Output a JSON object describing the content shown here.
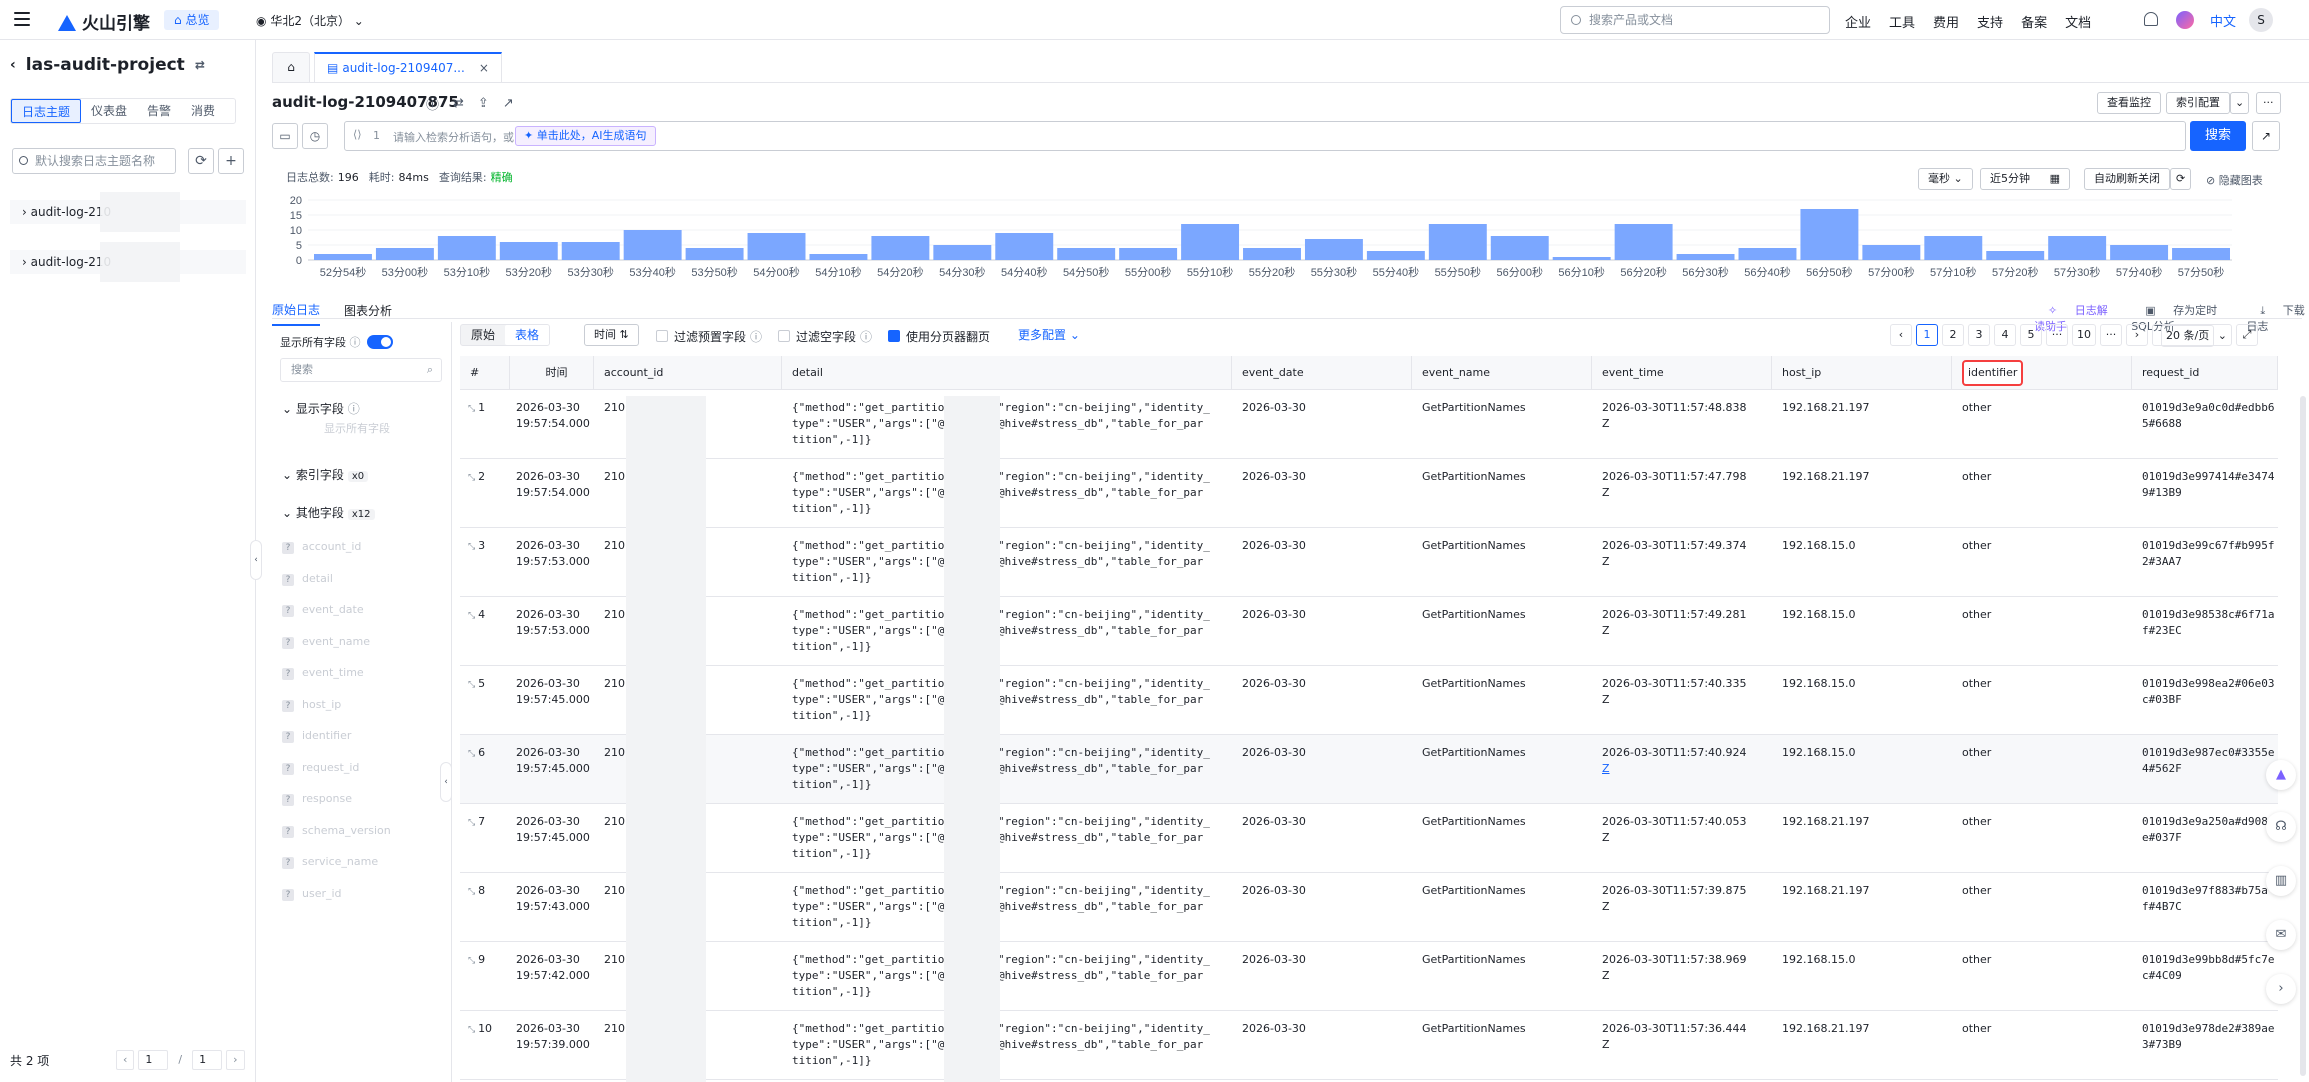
{
  "topbar": {
    "brand": "火山引擎",
    "overview": "总览",
    "region": "华北2（北京）",
    "search_placeholder": "搜索产品或文档",
    "menu": [
      "企业",
      "工具",
      "费用",
      "支持",
      "备案",
      "文档"
    ],
    "lang": "中文",
    "avatar": "S"
  },
  "sidebar": {
    "project": "las-audit-project",
    "tabs": [
      "日志主题",
      "仪表盘",
      "告警",
      "消费"
    ],
    "search_placeholder": "默认搜索日志主题名称",
    "items": [
      "audit-log-210",
      "audit-log-210"
    ],
    "total": "共 2 项",
    "page": "1",
    "page_sep": "/",
    "page_total": "1"
  },
  "tabs": {
    "active": "audit-log-2109407..."
  },
  "main": {
    "title": "audit-log-2109407875",
    "btn_monitor": "查看监控",
    "btn_index": "索引配置",
    "query_line": "1",
    "query_placeholder": "请输入检索分析语句，或",
    "ai_button": "单击此处，AI生成语句",
    "search_button": "搜索",
    "stats": {
      "total_label": "日志总数:",
      "total": "196",
      "time_label": "耗时:",
      "time": "84ms",
      "result_label": "查询结果:",
      "result": "精确"
    },
    "unit": "毫秒",
    "range": "近5分钟",
    "refresh": "自动刷新关闭",
    "hide_chart": "隐藏图表"
  },
  "chart_data": {
    "type": "bar",
    "y_ticks": [
      0,
      5,
      10,
      15,
      20
    ],
    "ylim": [
      0,
      20
    ],
    "x_labels": [
      "52分54秒",
      "53分00秒",
      "53分10秒",
      "53分20秒",
      "53分30秒",
      "53分40秒",
      "53分50秒",
      "54分00秒",
      "54分10秒",
      "54分20秒",
      "54分30秒",
      "54分40秒",
      "54分50秒",
      "55分00秒",
      "55分10秒",
      "55分20秒",
      "55分30秒",
      "55分40秒",
      "55分50秒",
      "56分00秒",
      "56分10秒",
      "56分20秒",
      "56分30秒",
      "56分40秒",
      "56分50秒",
      "57分00秒",
      "57分10秒",
      "57分20秒",
      "57分30秒",
      "57分40秒",
      "57分50秒"
    ],
    "values": [
      2,
      4,
      8,
      6,
      6,
      10,
      4,
      9,
      2,
      8,
      5,
      9,
      4,
      4,
      12,
      4,
      7,
      3,
      12,
      8,
      1,
      12,
      2,
      4,
      17,
      5,
      8,
      3,
      8,
      5,
      4
    ],
    "color": "#7ba7ff"
  },
  "views": {
    "raw": "原始日志",
    "chart": "图表分析"
  },
  "links": {
    "assistant": "日志解读助手",
    "sql": "存为定时SQL分析",
    "download": "下载日志"
  },
  "fields": {
    "show_all": "显示所有字段",
    "search": "搜索",
    "display_fields": "显示字段",
    "display_hint": "显示所有字段",
    "index_fields": "索引字段",
    "index_count": "x0",
    "other_fields": "其他字段",
    "other_count": "x12",
    "list": [
      "account_id",
      "detail",
      "event_date",
      "event_name",
      "event_time",
      "host_ip",
      "identifier",
      "request_id",
      "response",
      "schema_version",
      "service_name",
      "user_id"
    ]
  },
  "toolbar": {
    "seg_raw": "原始",
    "seg_table": "表格",
    "sort": "时间",
    "filter_preset": "过滤预置字段",
    "filter_empty": "过滤空字段",
    "paging": "使用分页器翻页",
    "more": "更多配置",
    "pages": [
      "1",
      "2",
      "3",
      "4",
      "5",
      "···",
      "10",
      "···"
    ],
    "page_size": "20 条/页"
  },
  "table": {
    "columns": [
      "#",
      "时间",
      "account_id",
      "detail",
      "event_date",
      "event_name",
      "event_time",
      "host_ip",
      "identifier",
      "request_id"
    ],
    "rows": [
      {
        "n": "1",
        "d": "2026-03-30",
        "t": "19:57:54.000",
        "acc": "210",
        "det1": "{\"method\":\"get_partition_",
        "det1b": "\"region\":\"cn-beijing\",\"identity_",
        "det2": "type\":\"USER\",\"args\":[\"@2",
        "det2b": "@hive#stress_db\",\"table_for_par",
        "det3": "tition\",-1]}",
        "ed": "2026-03-30",
        "en": "GetPartitionNames",
        "et1": "2026-03-30T11:57:48.838",
        "et2": "Z",
        "ip": "192.168.21.197",
        "id": "other",
        "r1": "01019d3e9a0c0d#edbb6",
        "r2": "5#6688"
      },
      {
        "n": "2",
        "d": "2026-03-30",
        "t": "19:57:54.000",
        "acc": "210",
        "det1": "{\"method\":\"get_partition_",
        "det1b": "\"region\":\"cn-beijing\",\"identity_",
        "det2": "type\":\"USER\",\"args\":[\"@2",
        "det2b": "@hive#stress_db\",\"table_for_par",
        "det3": "tition\",-1]}",
        "ed": "2026-03-30",
        "en": "GetPartitionNames",
        "et1": "2026-03-30T11:57:47.798",
        "et2": "Z",
        "ip": "192.168.21.197",
        "id": "other",
        "r1": "01019d3e997414#e3474",
        "r2": "9#13B9"
      },
      {
        "n": "3",
        "d": "2026-03-30",
        "t": "19:57:53.000",
        "acc": "210",
        "det1": "{\"method\":\"get_partition_",
        "det1b": "\"region\":\"cn-beijing\",\"identity_",
        "det2": "type\":\"USER\",\"args\":[\"@2",
        "det2b": "@hive#stress_db\",\"table_for_par",
        "det3": "tition\",-1]}",
        "ed": "2026-03-30",
        "en": "GetPartitionNames",
        "et1": "2026-03-30T11:57:49.374",
        "et2": "Z",
        "ip": "192.168.15.0",
        "id": "other",
        "r1": "01019d3e99c67f#b995f",
        "r2": "2#3AA7"
      },
      {
        "n": "4",
        "d": "2026-03-30",
        "t": "19:57:53.000",
        "acc": "210",
        "det1": "{\"method\":\"get_partition_",
        "det1b": "\"region\":\"cn-beijing\",\"identity_",
        "det2": "type\":\"USER\",\"args\":[\"@2",
        "det2b": "@hive#stress_db\",\"table_for_par",
        "det3": "tition\",-1]}",
        "ed": "2026-03-30",
        "en": "GetPartitionNames",
        "et1": "2026-03-30T11:57:49.281",
        "et2": "Z",
        "ip": "192.168.15.0",
        "id": "other",
        "r1": "01019d3e98538c#6f71a",
        "r2": "f#23EC"
      },
      {
        "n": "5",
        "d": "2026-03-30",
        "t": "19:57:45.000",
        "acc": "210",
        "det1": "{\"method\":\"get_partition_",
        "det1b": "\"region\":\"cn-beijing\",\"identity_",
        "det2": "type\":\"USER\",\"args\":[\"@2",
        "det2b": "@hive#stress_db\",\"table_for_par",
        "det3": "tition\",-1]}",
        "ed": "2026-03-30",
        "en": "GetPartitionNames",
        "et1": "2026-03-30T11:57:40.335",
        "et2": "Z",
        "ip": "192.168.15.0",
        "id": "other",
        "r1": "01019d3e998ea2#06e03",
        "r2": "c#03BF"
      },
      {
        "n": "6",
        "d": "2026-03-30",
        "t": "19:57:45.000",
        "acc": "210",
        "det1": "{\"method\":\"get_partition_",
        "det1b": "\"region\":\"cn-beijing\",\"identity_",
        "det2": "type\":\"USER\",\"args\":[\"@2",
        "det2b": "@hive#stress_db\",\"table_for_par",
        "det3": "tition\",-1]}",
        "ed": "2026-03-30",
        "en": "GetPartitionNames",
        "et1": "2026-03-30T11:57:40.924",
        "et2": "Z",
        "ip": "192.168.15.0",
        "id": "other",
        "r1": "01019d3e987ec0#3355e",
        "r2": "4#562F"
      },
      {
        "n": "7",
        "d": "2026-03-30",
        "t": "19:57:45.000",
        "acc": "210",
        "det1": "{\"method\":\"get_partition_",
        "det1b": "\"region\":\"cn-beijing\",\"identity_",
        "det2": "type\":\"USER\",\"args\":[\"@2",
        "det2b": "@hive#stress_db\",\"table_for_par",
        "det3": "tition\",-1]}",
        "ed": "2026-03-30",
        "en": "GetPartitionNames",
        "et1": "2026-03-30T11:57:40.053",
        "et2": "Z",
        "ip": "192.168.21.197",
        "id": "other",
        "r1": "01019d3e9a250a#d908",
        "r2": "e#037F"
      },
      {
        "n": "8",
        "d": "2026-03-30",
        "t": "19:57:43.000",
        "acc": "210",
        "det1": "{\"method\":\"get_partition_",
        "det1b": "\"region\":\"cn-beijing\",\"identity_",
        "det2": "type\":\"USER\",\"args\":[\"@2",
        "det2b": "@hive#stress_db\",\"table_for_par",
        "det3": "tition\",-1]}",
        "ed": "2026-03-30",
        "en": "GetPartitionNames",
        "et1": "2026-03-30T11:57:39.875",
        "et2": "Z",
        "ip": "192.168.21.197",
        "id": "other",
        "r1": "01019d3e97f883#b75a",
        "r2": "f#4B7C"
      },
      {
        "n": "9",
        "d": "2026-03-30",
        "t": "19:57:42.000",
        "acc": "210",
        "det1": "{\"method\":\"get_partition_",
        "det1b": "\"region\":\"cn-beijing\",\"identity_",
        "det2": "type\":\"USER\",\"args\":[\"@2",
        "det2b": "@hive#stress_db\",\"table_for_par",
        "det3": "tition\",-1]}",
        "ed": "2026-03-30",
        "en": "GetPartitionNames",
        "et1": "2026-03-30T11:57:38.969",
        "et2": "Z",
        "ip": "192.168.15.0",
        "id": "other",
        "r1": "01019d3e99bb8d#5fc7e",
        "r2": "c#4C09"
      },
      {
        "n": "10",
        "d": "2026-03-30",
        "t": "19:57:39.000",
        "acc": "210",
        "det1": "{\"method\":\"get_partition_",
        "det1b": "\"region\":\"cn-beijing\",\"identity_",
        "det2": "type\":\"USER\",\"args\":[\"@2",
        "det2b": "@hive#stress_db\",\"table_for_par",
        "det3": "tition\",-1]}",
        "ed": "2026-03-30",
        "en": "GetPartitionNames",
        "et1": "2026-03-30T11:57:36.444",
        "et2": "Z",
        "ip": "192.168.21.197",
        "id": "other",
        "r1": "01019d3e978de2#389ae",
        "r2": "3#73B9"
      }
    ]
  }
}
